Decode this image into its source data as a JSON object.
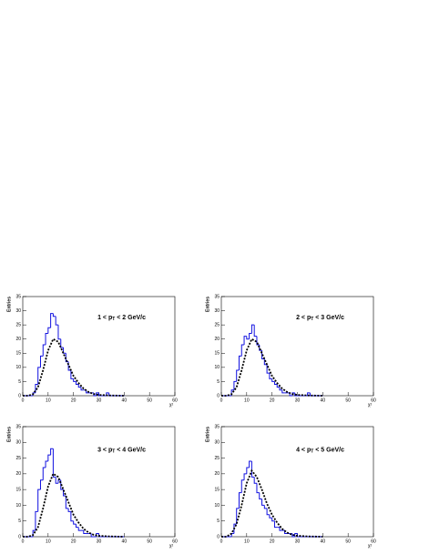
{
  "chart_data": [
    {
      "type": "histogram",
      "y_label": "Entries",
      "x_label": "χ²",
      "annotation": [
        "1 < p",
        "T",
        " < 2 GeV/c"
      ],
      "bins": [
        0,
        1,
        2,
        3,
        4,
        5,
        6,
        7,
        8,
        9,
        10,
        11,
        12,
        13,
        14,
        15,
        16,
        17,
        18,
        19,
        20,
        21,
        22,
        23,
        24,
        25,
        26,
        27,
        28,
        29,
        30,
        31,
        32,
        33,
        34,
        35,
        36,
        37,
        38,
        39,
        40
      ],
      "values": [
        0,
        0,
        0,
        0,
        1,
        4,
        10,
        14,
        18,
        22,
        24,
        29,
        28,
        25,
        20,
        17,
        15,
        12,
        9,
        6,
        5,
        4,
        3,
        2,
        2,
        1,
        1,
        1,
        0,
        1,
        0,
        0,
        0,
        1,
        0,
        0,
        0,
        0,
        0,
        0
      ],
      "color": "#1010e0",
      "fit": {
        "x": [
          0,
          2,
          4,
          6,
          8,
          10,
          12,
          14,
          16,
          18,
          20,
          22,
          24,
          26,
          28,
          30,
          34,
          40
        ],
        "values": [
          0,
          0,
          0.5,
          3,
          9,
          16,
          20,
          19,
          15,
          11,
          7,
          4.5,
          2.5,
          1.3,
          0.6,
          0.3,
          0.1,
          0
        ],
        "color": "#000000"
      },
      "xlim": [
        0,
        60
      ],
      "ylim": [
        0,
        35
      ],
      "xticks": [
        0,
        10,
        20,
        30,
        40,
        50,
        60
      ],
      "yticks": [
        0,
        5,
        10,
        15,
        20,
        25,
        30,
        35
      ]
    },
    {
      "type": "histogram",
      "y_label": "Entries",
      "x_label": "χ²",
      "annotation": [
        "2 < p",
        "T",
        " < 3 GeV/c"
      ],
      "bins": [
        0,
        1,
        2,
        3,
        4,
        5,
        6,
        7,
        8,
        9,
        10,
        11,
        12,
        13,
        14,
        15,
        16,
        17,
        18,
        19,
        20,
        21,
        22,
        23,
        24,
        25,
        26,
        27,
        28,
        29,
        30,
        31,
        32,
        33,
        34,
        35,
        36,
        37,
        38,
        39,
        40
      ],
      "values": [
        0,
        0,
        0,
        0,
        2,
        5,
        9,
        14,
        18,
        21,
        20,
        22,
        25,
        21,
        18,
        16,
        13,
        11,
        8,
        6,
        5,
        4,
        3,
        2,
        1,
        1,
        1,
        0,
        1,
        0,
        0,
        0,
        0,
        0,
        1,
        0,
        0,
        0,
        0,
        0
      ],
      "color": "#1010e0",
      "fit": {
        "x": [
          0,
          2,
          4,
          6,
          8,
          10,
          12,
          14,
          16,
          18,
          20,
          22,
          24,
          26,
          28,
          30,
          34,
          40
        ],
        "values": [
          0,
          0,
          0.5,
          3,
          9,
          16,
          20,
          19,
          15,
          11,
          7,
          4.5,
          2.5,
          1.3,
          0.6,
          0.3,
          0.1,
          0
        ],
        "color": "#000000"
      },
      "xlim": [
        0,
        60
      ],
      "ylim": [
        0,
        35
      ],
      "xticks": [
        0,
        10,
        20,
        30,
        40,
        50,
        60
      ],
      "yticks": [
        0,
        5,
        10,
        15,
        20,
        25,
        30,
        35
      ]
    },
    {
      "type": "histogram",
      "y_label": "Entries",
      "x_label": "χ²",
      "annotation": [
        "3 < p",
        "T",
        " < 4 GeV/c"
      ],
      "bins": [
        0,
        1,
        2,
        3,
        4,
        5,
        6,
        7,
        8,
        9,
        10,
        11,
        12,
        13,
        14,
        15,
        16,
        17,
        18,
        19,
        20,
        21,
        22,
        23,
        24,
        25,
        26,
        27,
        28,
        29,
        30,
        31,
        32,
        33,
        34,
        35,
        36,
        37,
        38,
        39,
        40
      ],
      "values": [
        0,
        0,
        0,
        0,
        2,
        8,
        15,
        18,
        22,
        24,
        26,
        28,
        19,
        17,
        18,
        15,
        13,
        9,
        8,
        5,
        4,
        3,
        2,
        2,
        1,
        1,
        1,
        0,
        0,
        1,
        0,
        0,
        0,
        0,
        0,
        0,
        0,
        0,
        0,
        0
      ],
      "color": "#1010e0",
      "fit": {
        "x": [
          0,
          2,
          4,
          6,
          8,
          10,
          12,
          14,
          16,
          18,
          20,
          22,
          24,
          26,
          28,
          30,
          34,
          40
        ],
        "values": [
          0,
          0,
          0.5,
          3,
          9,
          16,
          20,
          19,
          15,
          11,
          7,
          4.5,
          2.5,
          1.3,
          0.6,
          0.3,
          0.1,
          0
        ],
        "color": "#000000"
      },
      "xlim": [
        0,
        60
      ],
      "ylim": [
        0,
        35
      ],
      "xticks": [
        0,
        10,
        20,
        30,
        40,
        50,
        60
      ],
      "yticks": [
        0,
        5,
        10,
        15,
        20,
        25,
        30,
        35
      ]
    },
    {
      "type": "histogram",
      "y_label": "Entries",
      "x_label": "χ²",
      "annotation": [
        "4 < p",
        "T",
        " < 5 GeV/c"
      ],
      "bins": [
        0,
        1,
        2,
        3,
        4,
        5,
        6,
        7,
        8,
        9,
        10,
        11,
        12,
        13,
        14,
        15,
        16,
        17,
        18,
        19,
        20,
        21,
        22,
        23,
        24,
        25,
        26,
        27,
        28,
        29,
        30,
        31,
        32,
        33,
        34,
        35,
        36,
        37,
        38,
        39,
        40
      ],
      "values": [
        0,
        0,
        0,
        0,
        1,
        4,
        9,
        14,
        18,
        20,
        22,
        24,
        19,
        17,
        14,
        12,
        10,
        9,
        7,
        6,
        5,
        3,
        3,
        2,
        2,
        1,
        1,
        1,
        0,
        1,
        0,
        0,
        0,
        0,
        0,
        0,
        0,
        0,
        0,
        0
      ],
      "color": "#1010e0",
      "fit": {
        "x": [
          0,
          2,
          4,
          6,
          8,
          10,
          12,
          14,
          16,
          18,
          20,
          22,
          24,
          26,
          28,
          30,
          34,
          40
        ],
        "values": [
          0,
          0,
          1,
          4,
          10,
          17,
          21,
          19,
          15,
          10.5,
          7,
          4.5,
          2.5,
          1.3,
          0.6,
          0.3,
          0.1,
          0
        ],
        "color": "#000000"
      },
      "xlim": [
        0,
        60
      ],
      "ylim": [
        0,
        35
      ],
      "xticks": [
        0,
        10,
        20,
        30,
        40,
        50,
        60
      ],
      "yticks": [
        0,
        5,
        10,
        15,
        20,
        25,
        30,
        35
      ]
    }
  ]
}
